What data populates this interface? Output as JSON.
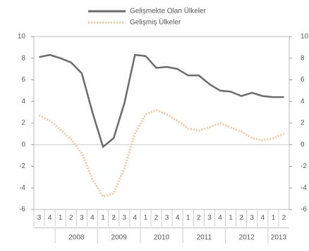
{
  "chart_data": {
    "type": "line",
    "categories": [
      "3",
      "4",
      "1",
      "2",
      "3",
      "4",
      "1",
      "2",
      "3",
      "4",
      "1",
      "2",
      "3",
      "4",
      "1",
      "2",
      "3",
      "4",
      "1",
      "2",
      "3",
      "4",
      "1",
      "2"
    ],
    "year_labels": [
      "2008",
      "2009",
      "2010",
      "2011",
      "2012",
      "2013"
    ],
    "series": [
      {
        "name": "Gelişmekte Olan Ülkeler",
        "color": "#6b6b6b",
        "dash": false,
        "values": [
          8.1,
          8.3,
          8.0,
          7.6,
          6.6,
          3.0,
          -0.2,
          0.6,
          3.8,
          8.3,
          8.2,
          7.1,
          7.2,
          7.0,
          6.4,
          6.4,
          5.6,
          5.0,
          4.9,
          4.5,
          4.8,
          4.5,
          4.4,
          4.4
        ]
      },
      {
        "name": "Gelişmiş Ülkeler",
        "color": "#f2c9a0",
        "dash": true,
        "values": [
          2.7,
          2.2,
          1.4,
          0.5,
          -0.8,
          -3.2,
          -4.8,
          -4.5,
          -2.2,
          1.0,
          2.8,
          3.2,
          2.8,
          2.2,
          1.5,
          1.3,
          1.6,
          2.0,
          1.6,
          1.2,
          0.6,
          0.4,
          0.6,
          1.0
        ]
      }
    ],
    "ylim": [
      -6,
      10
    ],
    "yticks": [
      -6,
      -4,
      -2,
      0,
      2,
      4,
      6,
      8,
      10
    ]
  }
}
